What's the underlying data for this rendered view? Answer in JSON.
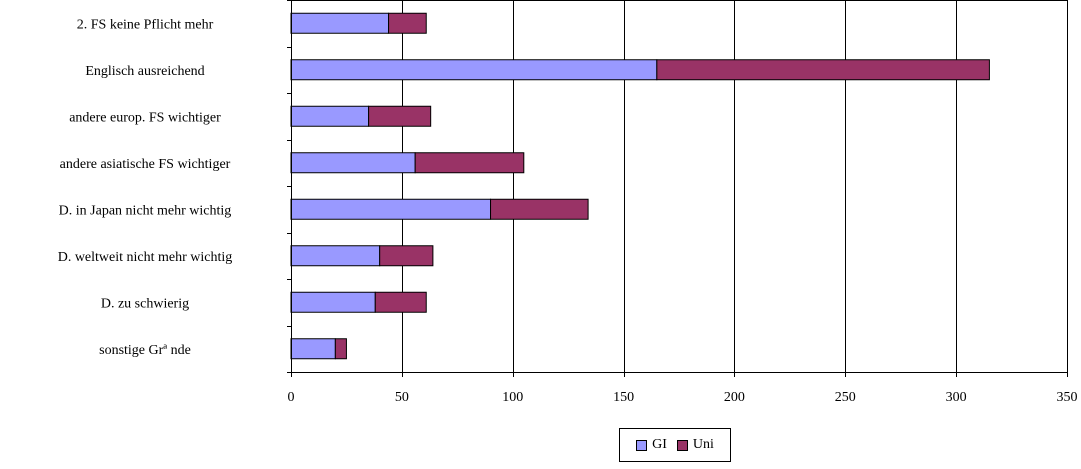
{
  "chart_data": {
    "type": "bar",
    "orientation": "horizontal",
    "stacked": true,
    "categories": [
      "2. FS keine Pflicht mehr",
      "Englisch ausreichend",
      "andere europ. FS wichtiger",
      "andere asiatische FS wichtiger",
      "D. in Japan nicht mehr wichtig",
      "D. weltweit nicht mehr wichtig",
      "D. zu schwierig",
      "sonstige Grª nde"
    ],
    "series": [
      {
        "name": "GI",
        "color": "#9999ff",
        "values": [
          44,
          165,
          35,
          56,
          90,
          40,
          38,
          20
        ]
      },
      {
        "name": "Uni",
        "color": "#993366",
        "values": [
          17,
          150,
          28,
          49,
          44,
          24,
          23,
          5
        ]
      }
    ],
    "xticks": [
      "0",
      "50",
      "100",
      "150",
      "200",
      "250",
      "300",
      "350"
    ],
    "xlim": [
      0,
      350
    ],
    "grid": true,
    "legend_position": "bottom"
  }
}
